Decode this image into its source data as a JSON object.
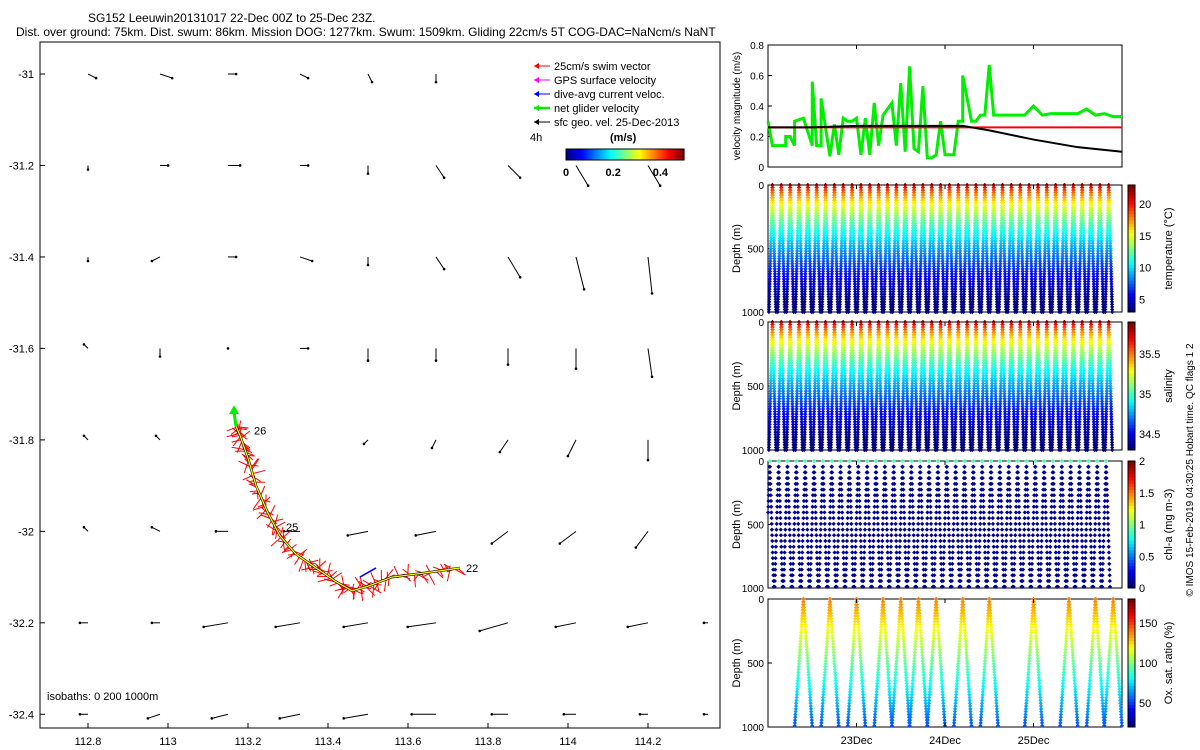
{
  "header": {
    "title": "SG152 Leeuwin20131017 22-Dec 00Z to 25-Dec 23Z.",
    "subtitle": "Dist. over ground: 75km. Dist. swum: 86km. Mission DOG: 1277km. Swum: 1509km. Gliding 22cm/s 5T COG-DAC=NaNcm/s NaNT"
  },
  "credit": "© IMOS 15-Feb-2019 04:30:25 Hobart time. QC flags 1  2",
  "colors": {
    "black": "#000000",
    "red": "#ff0000",
    "green": "#00ee00",
    "magenta": "#ff00ff",
    "blue": "#0000ff",
    "yellow": "#ffff00"
  },
  "chart_data": [
    {
      "type": "map",
      "x_ticks": [
        "112.8",
        "113",
        "113.2",
        "113.4",
        "113.6",
        "113.8",
        "114",
        "114.2"
      ],
      "y_ticks": [
        "-31",
        "-31.2",
        "-31.4",
        "-31.6",
        "-31.8",
        "-32",
        "-32.2",
        "-32.4"
      ],
      "xlim": [
        112.68,
        114.38
      ],
      "ylim": [
        -32.43,
        -30.93
      ],
      "legend": [
        {
          "label": "25cm/s swim vector",
          "color": "#ff0000"
        },
        {
          "label": "GPS surface velocity",
          "color": "#ff00ff"
        },
        {
          "label": "dive-avg current veloc.",
          "color": "#0000ff"
        },
        {
          "label": "net glider velocity",
          "color": "#00ee00"
        },
        {
          "label": "sfc geo. vel. 25-Dec-2013",
          "color": "#000000"
        }
      ],
      "legend_placement": "top-right",
      "scale_label": "4h",
      "colorbar": {
        "label": "(m/s)",
        "ticks": [
          "0",
          "0.2",
          "0.4"
        ],
        "range": [
          0,
          0.5
        ]
      },
      "isobaths_label": "isobaths: 0    200   1000m",
      "day_labels": [
        {
          "label": "26",
          "lon": 113.2,
          "lat": -31.78
        },
        {
          "label": "25",
          "lon": 113.28,
          "lat": -31.99
        },
        {
          "label": "22",
          "lon": 113.73,
          "lat": -32.08
        }
      ],
      "track": [
        [
          113.73,
          -32.08
        ],
        [
          113.65,
          -32.09
        ],
        [
          113.56,
          -32.1
        ],
        [
          113.5,
          -32.12
        ],
        [
          113.46,
          -32.13
        ],
        [
          113.42,
          -32.11
        ],
        [
          113.37,
          -32.08
        ],
        [
          113.32,
          -32.05
        ],
        [
          113.28,
          -32.01
        ],
        [
          113.25,
          -31.96
        ],
        [
          113.22,
          -31.9
        ],
        [
          113.2,
          -31.84
        ],
        [
          113.18,
          -31.79
        ],
        [
          113.17,
          -31.77
        ]
      ],
      "current_vectors_note": "sfc geo. vel. 25-Dec-2013 grid",
      "current_vectors": [
        [
          112.8,
          -31.0,
          0.02,
          -0.01
        ],
        [
          112.98,
          -31.0,
          0.03,
          -0.01
        ],
        [
          113.15,
          -31.0,
          0.02,
          0.0
        ],
        [
          113.33,
          -31.0,
          0.02,
          -0.01
        ],
        [
          113.5,
          -31.0,
          0.01,
          -0.02
        ],
        [
          113.67,
          -31.0,
          0.0,
          -0.02
        ],
        [
          112.8,
          -31.2,
          0.0,
          -0.01
        ],
        [
          112.98,
          -31.2,
          0.02,
          0.0
        ],
        [
          113.15,
          -31.2,
          0.03,
          0.0
        ],
        [
          113.33,
          -31.2,
          0.02,
          0.0
        ],
        [
          113.5,
          -31.2,
          0.0,
          -0.02
        ],
        [
          113.67,
          -31.2,
          0.02,
          -0.03
        ],
        [
          113.85,
          -31.2,
          0.03,
          -0.03
        ],
        [
          114.02,
          -31.2,
          0.03,
          -0.05
        ],
        [
          114.2,
          -31.2,
          0.03,
          -0.05
        ],
        [
          112.8,
          -31.4,
          0.0,
          -0.01
        ],
        [
          112.98,
          -31.4,
          -0.02,
          -0.01
        ],
        [
          113.15,
          -31.4,
          0.02,
          0.0
        ],
        [
          113.33,
          -31.4,
          0.03,
          -0.01
        ],
        [
          113.5,
          -31.4,
          0.0,
          -0.02
        ],
        [
          113.67,
          -31.4,
          0.02,
          -0.03
        ],
        [
          113.85,
          -31.4,
          0.03,
          -0.05
        ],
        [
          114.02,
          -31.4,
          0.02,
          -0.08
        ],
        [
          114.2,
          -31.4,
          0.01,
          -0.09
        ],
        [
          112.8,
          -31.6,
          -0.01,
          0.01
        ],
        [
          112.98,
          -31.6,
          0.0,
          -0.02
        ],
        [
          113.15,
          -31.6,
          0.0,
          0.0
        ],
        [
          113.33,
          -31.6,
          0.02,
          0.0
        ],
        [
          113.5,
          -31.6,
          0.0,
          -0.03
        ],
        [
          113.67,
          -31.6,
          0.0,
          -0.03
        ],
        [
          113.85,
          -31.6,
          0.0,
          -0.04
        ],
        [
          114.02,
          -31.6,
          0.0,
          -0.05
        ],
        [
          114.2,
          -31.6,
          0.01,
          -0.07
        ],
        [
          112.8,
          -31.8,
          -0.01,
          0.01
        ],
        [
          112.98,
          -31.8,
          -0.01,
          0.01
        ],
        [
          113.5,
          -31.8,
          -0.01,
          -0.01
        ],
        [
          113.67,
          -31.8,
          -0.01,
          -0.02
        ],
        [
          113.85,
          -31.8,
          -0.02,
          -0.03
        ],
        [
          114.02,
          -31.8,
          -0.02,
          -0.04
        ],
        [
          114.2,
          -31.8,
          0.0,
          -0.05
        ],
        [
          112.8,
          -32.0,
          -0.01,
          0.01
        ],
        [
          112.98,
          -32.0,
          -0.02,
          0.01
        ],
        [
          113.15,
          -32.0,
          -0.03,
          0.0
        ],
        [
          113.33,
          -32.0,
          -0.04,
          0.0
        ],
        [
          113.5,
          -32.0,
          -0.05,
          -0.01
        ],
        [
          113.67,
          -32.0,
          -0.05,
          -0.01
        ],
        [
          113.85,
          -32.0,
          -0.04,
          -0.03
        ],
        [
          114.02,
          -32.0,
          -0.04,
          -0.03
        ],
        [
          114.2,
          -32.0,
          -0.03,
          -0.04
        ],
        [
          112.8,
          -32.2,
          -0.02,
          0.0
        ],
        [
          112.98,
          -32.2,
          -0.02,
          0.0
        ],
        [
          113.15,
          -32.2,
          -0.06,
          -0.01
        ],
        [
          113.33,
          -32.2,
          -0.06,
          -0.01
        ],
        [
          113.5,
          -32.2,
          -0.06,
          -0.01
        ],
        [
          113.67,
          -32.2,
          -0.07,
          -0.01
        ],
        [
          113.85,
          -32.2,
          -0.07,
          -0.02
        ],
        [
          114.02,
          -32.2,
          -0.05,
          -0.01
        ],
        [
          114.2,
          -32.2,
          -0.05,
          -0.01
        ],
        [
          114.35,
          -32.2,
          -0.01,
          0.0
        ],
        [
          112.8,
          -32.4,
          -0.02,
          0.0
        ],
        [
          112.98,
          -32.4,
          -0.03,
          -0.01
        ],
        [
          113.15,
          -32.4,
          -0.04,
          -0.01
        ],
        [
          113.33,
          -32.4,
          -0.05,
          -0.01
        ],
        [
          113.5,
          -32.4,
          -0.06,
          -0.01
        ],
        [
          113.67,
          -32.4,
          -0.06,
          0.0
        ],
        [
          113.85,
          -32.4,
          -0.04,
          0.0
        ],
        [
          114.02,
          -32.4,
          -0.03,
          0.0
        ],
        [
          114.2,
          -32.4,
          -0.02,
          0.0
        ],
        [
          114.35,
          -32.4,
          -0.01,
          0.0
        ]
      ]
    },
    {
      "type": "line",
      "ylabel": "velocity magnitude (m/s)",
      "ylim": [
        0,
        0.8
      ],
      "y_ticks": [
        "0",
        "0.2",
        "0.4",
        "0.6",
        "0.8"
      ],
      "xlim": [
        22.0,
        26.0
      ],
      "series": [
        {
          "color": "#00ee00",
          "x": [
            22.0,
            22.05,
            22.1,
            22.15,
            22.2,
            22.2,
            22.25,
            22.3,
            22.3,
            22.4,
            22.5,
            22.5,
            22.55,
            22.6,
            22.6,
            22.7,
            22.75,
            22.8,
            22.85,
            22.9,
            22.95,
            23.0,
            23.05,
            23.1,
            23.15,
            23.2,
            23.25,
            23.3,
            23.4,
            23.45,
            23.5,
            23.55,
            23.6,
            23.65,
            23.7,
            23.75,
            23.8,
            23.85,
            23.9,
            23.95,
            24.0,
            24.05,
            24.1,
            24.15,
            24.2,
            24.2,
            24.3,
            24.35,
            24.4,
            24.45,
            24.5,
            24.55,
            24.6,
            24.7,
            24.8,
            24.9,
            25.0,
            25.1,
            25.2,
            25.3,
            25.4,
            25.5,
            25.6,
            25.7,
            25.8,
            25.9,
            26.0
          ],
          "y": [
            0.3,
            0.14,
            0.14,
            0.14,
            0.14,
            0.2,
            0.2,
            0.14,
            0.3,
            0.32,
            0.14,
            0.56,
            0.14,
            0.14,
            0.45,
            0.07,
            0.28,
            0.08,
            0.32,
            0.3,
            0.3,
            0.32,
            0.08,
            0.32,
            0.08,
            0.42,
            0.14,
            0.34,
            0.42,
            0.14,
            0.55,
            0.1,
            0.66,
            0.12,
            0.1,
            0.53,
            0.06,
            0.06,
            0.08,
            0.3,
            0.08,
            0.08,
            0.08,
            0.3,
            0.3,
            0.6,
            0.3,
            0.3,
            0.34,
            0.34,
            0.67,
            0.34,
            0.34,
            0.34,
            0.34,
            0.34,
            0.4,
            0.34,
            0.35,
            0.35,
            0.35,
            0.35,
            0.38,
            0.34,
            0.35,
            0.33,
            0.33
          ]
        },
        {
          "color": "#ff0000",
          "x": [
            22.0,
            26.0
          ],
          "y": [
            0.26,
            0.26
          ]
        },
        {
          "color": "#000000",
          "x": [
            22.0,
            22.5,
            23.0,
            23.5,
            24.0,
            24.2,
            24.5,
            25.0,
            25.5,
            26.0
          ],
          "y": [
            0.26,
            0.26,
            0.27,
            0.27,
            0.27,
            0.27,
            0.24,
            0.18,
            0.13,
            0.1
          ]
        }
      ]
    },
    {
      "type": "scatter",
      "variable": "temperature",
      "ylabel": "Depth (m)",
      "colorbar_label": "temperature (°C)",
      "colorbar_ticks": [
        "5",
        "10",
        "15",
        "20"
      ],
      "color_range": [
        3,
        23
      ],
      "ylim": [
        0,
        1000
      ],
      "y_ticks": [
        "0",
        "500",
        "1000"
      ],
      "profiles": 39,
      "max_depth": 1000
    },
    {
      "type": "scatter",
      "variable": "salinity",
      "ylabel": "Depth (m)",
      "colorbar_label": "salinity",
      "colorbar_ticks": [
        "34.5",
        "35",
        "35.5"
      ],
      "color_range": [
        34.3,
        35.9
      ],
      "ylim": [
        0,
        1000
      ],
      "y_ticks": [
        "0",
        "500",
        "1000"
      ],
      "profiles": 39,
      "max_depth": 1000
    },
    {
      "type": "scatter",
      "variable": "chl-a",
      "ylabel": "Depth (m)",
      "colorbar_label": "chl-a (mg m-3)",
      "colorbar_ticks": [
        "0",
        "0.5",
        "1",
        "1.5",
        "2"
      ],
      "color_range": [
        0,
        2
      ],
      "ylim": [
        0,
        1000
      ],
      "y_ticks": [
        "0",
        "500",
        "1000"
      ],
      "profiles": 39,
      "max_depth": 1000
    },
    {
      "type": "scatter",
      "variable": "oxygen",
      "ylabel": "Depth (m)",
      "colorbar_label": "Ox. sat. ratio (%)",
      "colorbar_ticks": [
        "50",
        "100",
        "150"
      ],
      "color_range": [
        20,
        180
      ],
      "ylim": [
        0,
        1000
      ],
      "y_ticks": [
        "0",
        "500",
        "1000"
      ],
      "x_ticks": [
        "23Dec",
        "24Dec",
        "25Dec"
      ],
      "profile_positions": [
        22.4,
        22.7,
        23.0,
        23.3,
        23.5,
        23.7,
        23.9,
        24.2,
        24.5,
        25.0,
        25.4,
        25.7,
        25.9
      ],
      "max_depth": 1000
    }
  ]
}
